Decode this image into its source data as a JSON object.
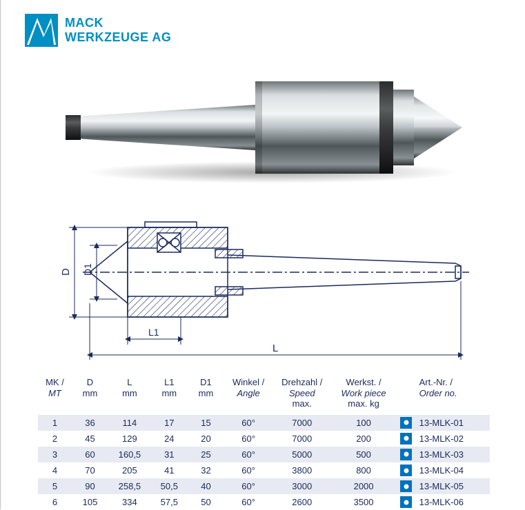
{
  "brand": {
    "line1": "MACK",
    "line2": "WERKZEUGE AG",
    "logo_color": "#008fc3"
  },
  "diagram_labels": {
    "D": "D",
    "D1": "D1",
    "L1": "L1",
    "L": "L"
  },
  "table": {
    "header_color": "#1a2a5a",
    "shade_color": "#e7eaf2",
    "dot_bg": "#0072bc",
    "columns": [
      {
        "key": "mk",
        "line1": "MK /",
        "line2": "MT",
        "italic2": true
      },
      {
        "key": "d",
        "line1": "D",
        "line2": "mm"
      },
      {
        "key": "l",
        "line1": "L",
        "line2": "mm"
      },
      {
        "key": "l1",
        "line1": "L1",
        "line2": "mm"
      },
      {
        "key": "d1",
        "line1": "D1",
        "line2": "mm"
      },
      {
        "key": "ang",
        "line1": "Winkel /",
        "line2": "Angle",
        "italic2": true
      },
      {
        "key": "spd",
        "line1": "Drehzahl /",
        "line2": "Speed",
        "line3": "max.",
        "italic2": true
      },
      {
        "key": "wrk",
        "line1": "Werkst. /",
        "line2": "Work piece",
        "line3": "max. kg",
        "italic2": true
      },
      {
        "key": "art",
        "line1": "Art.-Nr. /",
        "line2": "Order no.",
        "italic2": true
      }
    ],
    "rows": [
      {
        "mk": "1",
        "d": "36",
        "l": "114",
        "l1": "17",
        "d1": "15",
        "ang": "60°",
        "spd": "7000",
        "wrk": "100",
        "art": "13-MLK-01"
      },
      {
        "mk": "2",
        "d": "45",
        "l": "129",
        "l1": "24",
        "d1": "20",
        "ang": "60°",
        "spd": "7000",
        "wrk": "200",
        "art": "13-MLK-02"
      },
      {
        "mk": "3",
        "d": "60",
        "l": "160,5",
        "l1": "31",
        "d1": "25",
        "ang": "60°",
        "spd": "5000",
        "wrk": "500",
        "art": "13-MLK-03"
      },
      {
        "mk": "4",
        "d": "70",
        "l": "205",
        "l1": "41",
        "d1": "32",
        "ang": "60°",
        "spd": "3800",
        "wrk": "800",
        "art": "13-MLK-04"
      },
      {
        "mk": "5",
        "d": "90",
        "l": "258,5",
        "l1": "50,5",
        "d1": "40",
        "ang": "60°",
        "spd": "3000",
        "wrk": "2000",
        "art": "13-MLK-05"
      },
      {
        "mk": "6",
        "d": "105",
        "l": "334",
        "l1": "57,5",
        "d1": "50",
        "ang": "60°",
        "spd": "2600",
        "wrk": "3500",
        "art": "13-MLK-06"
      }
    ]
  }
}
